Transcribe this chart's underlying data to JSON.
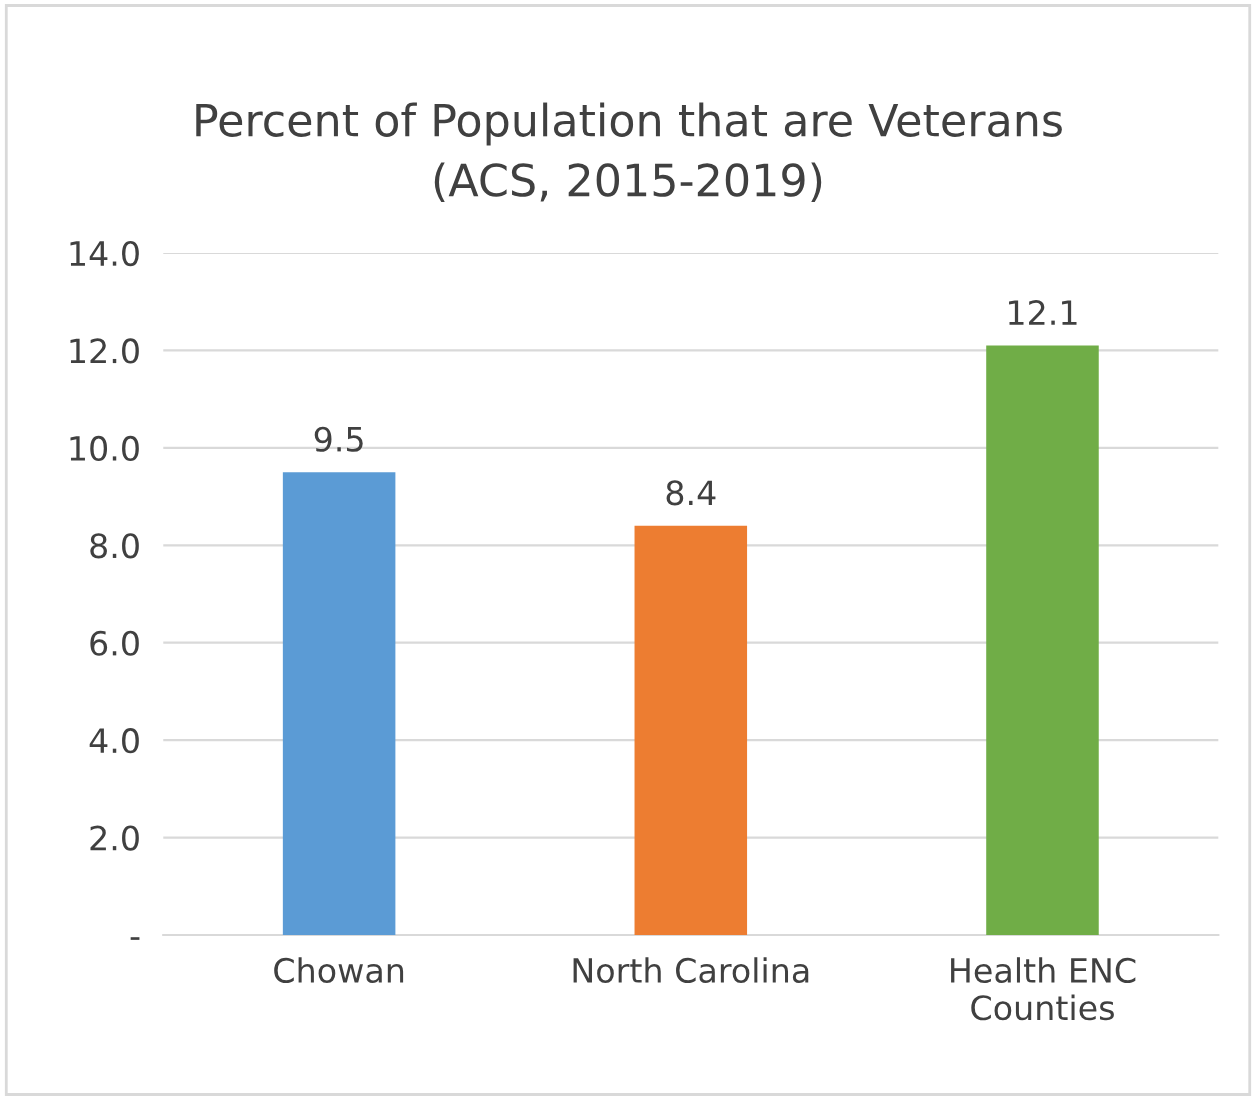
{
  "chart_data": {
    "type": "bar",
    "title": "Percent of Population that are Veterans\n(ACS, 2015-2019)",
    "categories": [
      "Chowan",
      "North Carolina",
      "Health ENC Counties"
    ],
    "values": [
      9.5,
      8.4,
      12.1
    ],
    "colors": [
      "#5b9bd5",
      "#ed7d31",
      "#70ad47"
    ],
    "ylim": [
      0,
      14
    ],
    "yticks": [
      {
        "value": 0,
        "label": "-"
      },
      {
        "value": 2,
        "label": "2.0"
      },
      {
        "value": 4,
        "label": "4.0"
      },
      {
        "value": 6,
        "label": "6.0"
      },
      {
        "value": 8,
        "label": "8.0"
      },
      {
        "value": 10,
        "label": "10.0"
      },
      {
        "value": 12,
        "label": "12.0"
      },
      {
        "value": 14,
        "label": "14.0"
      }
    ],
    "grid": "y",
    "data_labels": true
  }
}
